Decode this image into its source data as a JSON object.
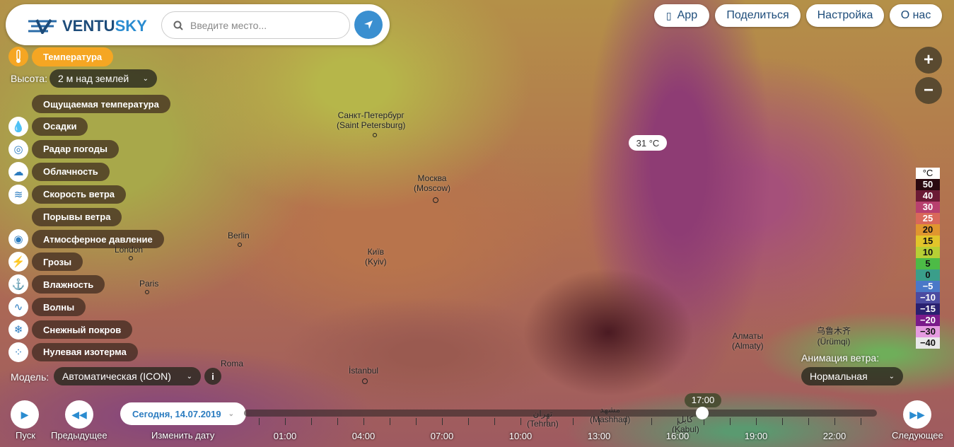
{
  "header": {
    "logo": "VENTUSKY",
    "logo_a": "VENTU",
    "logo_b": "SKY",
    "search_placeholder": "Введите место...",
    "app": "App",
    "share": "Поделиться",
    "settings": "Настройка",
    "about": "О нас"
  },
  "layer": {
    "active": "Температура",
    "height_label": "Высота:",
    "height_value": "2 м над землей"
  },
  "menu": [
    {
      "label": "Ощущаемая температура",
      "icon": ""
    },
    {
      "label": "Осадки",
      "icon": "drop-icon"
    },
    {
      "label": "Радар погоды",
      "icon": "radar-icon"
    },
    {
      "label": "Облачность",
      "icon": "cloud-icon"
    },
    {
      "label": "Скорость ветра",
      "icon": "wind-icon"
    },
    {
      "label": "Порывы ветра",
      "icon": ""
    },
    {
      "label": "Атмосферное давление",
      "icon": "pressure-icon"
    },
    {
      "label": "Грозы",
      "icon": "lightning-icon"
    },
    {
      "label": "Влажность",
      "icon": "humidity-icon"
    },
    {
      "label": "Волны",
      "icon": "wave-icon"
    },
    {
      "label": "Снежный покров",
      "icon": "snowflake-icon"
    },
    {
      "label": "Нулевая изотерма",
      "icon": "isotherm-icon"
    }
  ],
  "model": {
    "label": "Модель:",
    "value": "Автоматическая (ICON)"
  },
  "wind_anim": {
    "label": "Анимация ветра:",
    "value": "Нормальная"
  },
  "tooltip": "31 °C",
  "cities": [
    {
      "name": "Санкт-Петербург",
      "sub": "(Saint Petersburg)"
    },
    {
      "name": "Москва",
      "sub": "(Moscow)"
    },
    {
      "name": "Berlin",
      "sub": ""
    },
    {
      "name": "London",
      "sub": ""
    },
    {
      "name": "Paris",
      "sub": ""
    },
    {
      "name": "Київ",
      "sub": "(Kyiv)"
    },
    {
      "name": "Roma",
      "sub": ""
    },
    {
      "name": "İstanbul",
      "sub": ""
    },
    {
      "name": "Алматы",
      "sub": "(Almaty)"
    },
    {
      "name": "乌鲁木齐",
      "sub": "(Ürümqi)"
    },
    {
      "name": "تهران",
      "sub": "(Tehran)"
    },
    {
      "name": "مشهد",
      "sub": "(Mashhad)"
    },
    {
      "name": "کابل",
      "sub": "(Kabul)"
    }
  ],
  "legend": {
    "unit": "°C",
    "items": [
      {
        "v": "50",
        "c": "#2a0a10"
      },
      {
        "v": "40",
        "c": "#6b1a35"
      },
      {
        "v": "30",
        "c": "#b8406f"
      },
      {
        "v": "25",
        "c": "#d9685a"
      },
      {
        "v": "20",
        "c": "#e0962f"
      },
      {
        "v": "15",
        "c": "#e2c52a"
      },
      {
        "v": "10",
        "c": "#b7cf35"
      },
      {
        "v": "5",
        "c": "#4dbb46"
      },
      {
        "v": "0",
        "c": "#3a9e8a"
      },
      {
        "v": "−5",
        "c": "#4a78c8"
      },
      {
        "v": "−10",
        "c": "#4b4aa0"
      },
      {
        "v": "−15",
        "c": "#2a2070"
      },
      {
        "v": "−20",
        "c": "#7a1a8a"
      },
      {
        "v": "−30",
        "c": "#e59be0"
      },
      {
        "v": "−40",
        "c": "#e8e8e8"
      }
    ]
  },
  "timeline": {
    "play": "Пуск",
    "prev": "Предыдущее",
    "date": "Сегодня, 14.07.2019",
    "change_date": "Изменить дату",
    "next": "Следующее",
    "current": "17:00",
    "hours": [
      "01:00",
      "04:00",
      "07:00",
      "10:00",
      "13:00",
      "16:00",
      "19:00",
      "22:00"
    ]
  },
  "colors": {
    "accent": "#f5a623",
    "blue": "#2b8cd0",
    "navy": "#1d4c7a"
  }
}
